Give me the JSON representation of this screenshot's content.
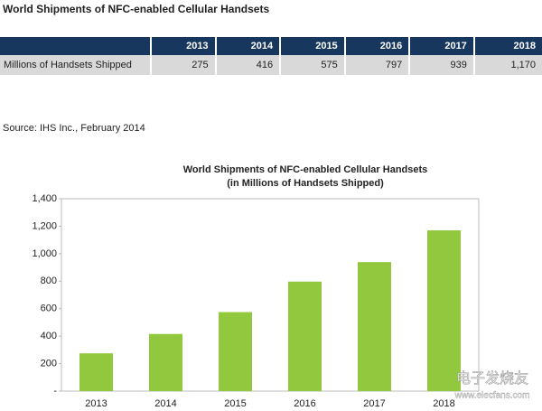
{
  "title": "World Shipments of NFC-enabled Cellular Handsets",
  "table": {
    "header": [
      "2013",
      "2014",
      "2015",
      "2016",
      "2017",
      "2018"
    ],
    "rows": [
      {
        "label": "Millions of Handsets Shipped",
        "cells": [
          "275",
          "416",
          "575",
          "797",
          "939",
          "1,170"
        ]
      }
    ]
  },
  "source": "Source: IHS Inc., February 2014",
  "chart_data": {
    "type": "bar",
    "title": "World Shipments of NFC-enabled  Cellular Handsets",
    "subtitle": "(in Millions of Handsets Shipped)",
    "categories": [
      "2013",
      "2014",
      "2015",
      "2016",
      "2017",
      "2018"
    ],
    "values": [
      275,
      416,
      575,
      797,
      939,
      1170
    ],
    "color": "#92c83e",
    "ylim": [
      0,
      1400
    ],
    "yticks": [
      {
        "value": 0,
        "label": "-"
      },
      200,
      400,
      600,
      800,
      {
        "value": 1000,
        "label": "1,000"
      },
      {
        "value": 1200,
        "label": "1,200"
      },
      {
        "value": 1400,
        "label": "1,400"
      }
    ],
    "grid": false
  },
  "watermark": [
    "电子发烧友",
    "www.elecfans.com"
  ]
}
